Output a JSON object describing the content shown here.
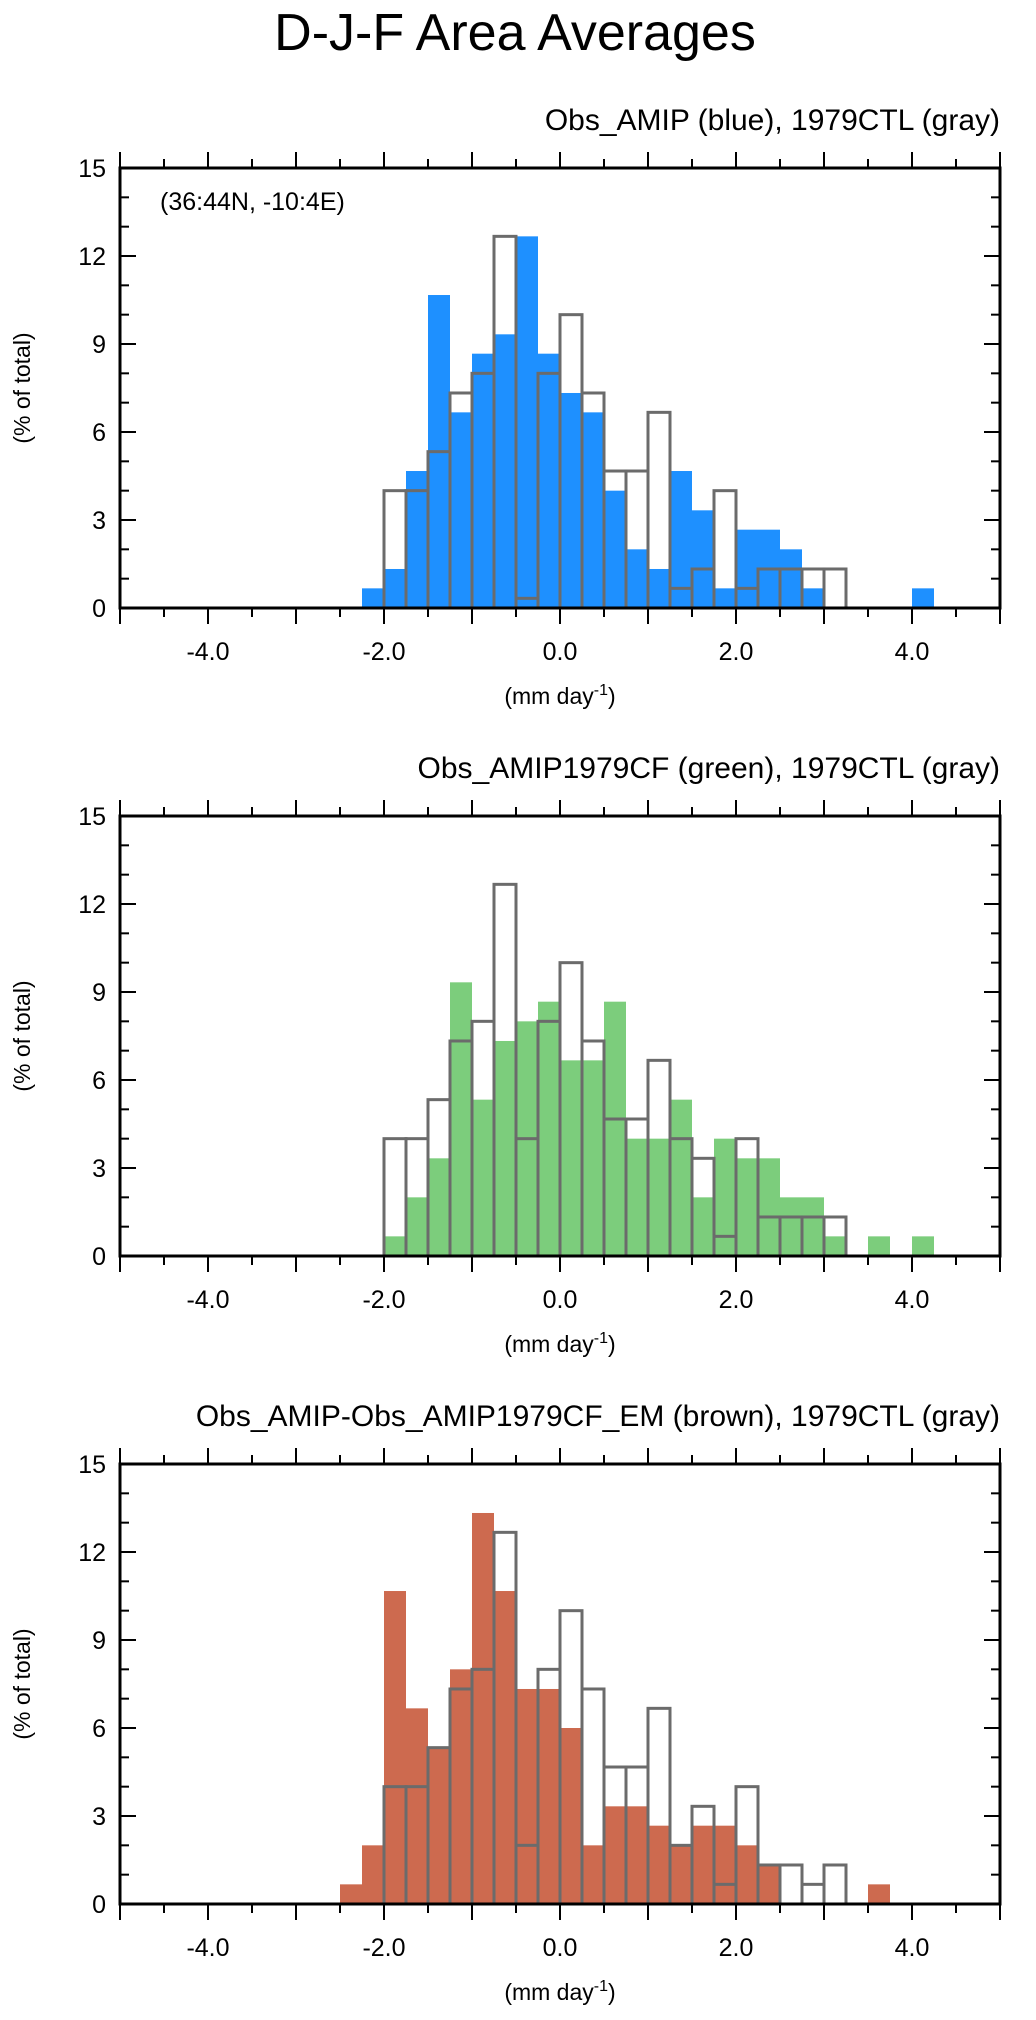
{
  "figure": {
    "title": "D-J-F Area Averages"
  },
  "colors": {
    "blue": "#1e90ff",
    "green": "#7ccd7c",
    "brown": "#cd6a4f",
    "gray": "#6b6b6b",
    "axis": "#000000"
  },
  "chart_data": [
    {
      "type": "bar",
      "title": "Obs_AMIP (blue), 1979CTL (gray)",
      "region": "(36:44N, -10:4E)",
      "xlabel": "(mm day",
      "xlabel_sup": "-1",
      "xlabel_close": ")",
      "ylabel": "(% of total)",
      "xlim": [
        -5,
        5
      ],
      "ylim": [
        0,
        15
      ],
      "xticks": [
        -4,
        -2,
        0,
        2,
        4
      ],
      "xtick_labels": [
        "-4.0",
        "-2.0",
        "0.0",
        "2.0",
        "4.0"
      ],
      "yticks": [
        0,
        3,
        6,
        9,
        12,
        15
      ],
      "ytick_labels": [
        "0",
        "3",
        "6",
        "9",
        "12",
        "15"
      ],
      "bin_width": 0.25,
      "series": [
        {
          "name": "Obs_AMIP",
          "style": "filled",
          "color": "blue",
          "bin_start": [
            -2.25,
            -2.0,
            -1.75,
            -1.5,
            -1.25,
            -1.0,
            -0.75,
            -0.5,
            -0.25,
            0.0,
            0.25,
            0.5,
            0.75,
            1.0,
            1.25,
            1.5,
            1.75,
            2.0,
            2.25,
            2.5,
            2.75,
            4.0
          ],
          "values": [
            0.67,
            1.33,
            4.67,
            10.67,
            6.67,
            8.67,
            9.33,
            12.67,
            8.67,
            7.33,
            6.67,
            4.0,
            2.0,
            1.33,
            4.67,
            3.33,
            0.67,
            2.67,
            2.67,
            2.0,
            0.67,
            0.67
          ]
        },
        {
          "name": "1979CTL",
          "style": "outline",
          "color": "gray",
          "bin_start": [
            -2.0,
            -1.75,
            -1.5,
            -1.25,
            -1.0,
            -0.75,
            -0.5,
            -0.25,
            0.0,
            0.25,
            0.5,
            0.75,
            1.0,
            1.25,
            1.5,
            1.75,
            2.0,
            2.25,
            2.5,
            2.75,
            3.0
          ],
          "values": [
            4.0,
            4.0,
            5.33,
            7.33,
            8.0,
            12.67,
            0.33,
            8.0,
            10.0,
            7.33,
            4.67,
            4.67,
            6.67,
            0.67,
            1.33,
            4.0,
            0.67,
            1.33,
            1.33,
            1.33,
            1.33
          ]
        }
      ]
    },
    {
      "type": "bar",
      "title": "Obs_AMIP1979CF (green), 1979CTL (gray)",
      "region": "",
      "xlabel": "(mm day",
      "xlabel_sup": "-1",
      "xlabel_close": ")",
      "ylabel": "(% of total)",
      "xlim": [
        -5,
        5
      ],
      "ylim": [
        0,
        15
      ],
      "xticks": [
        -4,
        -2,
        0,
        2,
        4
      ],
      "xtick_labels": [
        "-4.0",
        "-2.0",
        "0.0",
        "2.0",
        "4.0"
      ],
      "yticks": [
        0,
        3,
        6,
        9,
        12,
        15
      ],
      "ytick_labels": [
        "0",
        "3",
        "6",
        "9",
        "12",
        "15"
      ],
      "bin_width": 0.25,
      "series": [
        {
          "name": "Obs_AMIP1979CF",
          "style": "filled",
          "color": "green",
          "bin_start": [
            -2.0,
            -1.75,
            -1.5,
            -1.25,
            -1.0,
            -0.75,
            -0.5,
            -0.25,
            0.0,
            0.25,
            0.5,
            0.75,
            1.0,
            1.25,
            1.5,
            1.75,
            2.0,
            2.25,
            2.5,
            2.75,
            3.0,
            3.5,
            4.0
          ],
          "values": [
            0.67,
            2.0,
            3.33,
            9.33,
            5.33,
            7.33,
            8.0,
            8.67,
            6.67,
            6.67,
            8.67,
            4.0,
            4.0,
            5.33,
            2.0,
            4.0,
            3.33,
            3.33,
            2.0,
            2.0,
            0.67,
            0.67,
            0.67
          ]
        },
        {
          "name": "1979CTL",
          "style": "outline",
          "color": "gray",
          "bin_start": [
            -2.0,
            -1.75,
            -1.5,
            -1.25,
            -1.0,
            -0.75,
            -0.5,
            -0.25,
            0.0,
            0.25,
            0.5,
            0.75,
            1.0,
            1.25,
            1.5,
            1.75,
            2.0,
            2.25,
            2.5,
            2.75,
            3.0
          ],
          "values": [
            4.0,
            4.0,
            5.33,
            7.33,
            8.0,
            12.67,
            4.0,
            8.0,
            10.0,
            7.33,
            4.67,
            4.67,
            6.67,
            4.0,
            3.33,
            0.67,
            4.0,
            1.33,
            1.33,
            1.33,
            1.33
          ]
        }
      ]
    },
    {
      "type": "bar",
      "title": "Obs_AMIP-Obs_AMIP1979CF_EM (brown), 1979CTL (gray)",
      "region": "",
      "xlabel": "(mm day",
      "xlabel_sup": "-1",
      "xlabel_close": ")",
      "ylabel": "(% of total)",
      "xlim": [
        -5,
        5
      ],
      "ylim": [
        0,
        15
      ],
      "xticks": [
        -4,
        -2,
        0,
        2,
        4
      ],
      "xtick_labels": [
        "-4.0",
        "-2.0",
        "0.0",
        "2.0",
        "4.0"
      ],
      "yticks": [
        0,
        3,
        6,
        9,
        12,
        15
      ],
      "ytick_labels": [
        "0",
        "3",
        "6",
        "9",
        "12",
        "15"
      ],
      "bin_width": 0.25,
      "series": [
        {
          "name": "Obs_AMIP-Obs_AMIP1979CF_EM",
          "style": "filled",
          "color": "brown",
          "bin_start": [
            -2.5,
            -2.25,
            -2.0,
            -1.75,
            -1.5,
            -1.25,
            -1.0,
            -0.75,
            -0.5,
            -0.25,
            0.0,
            0.25,
            0.5,
            0.75,
            1.0,
            1.25,
            1.5,
            1.75,
            2.0,
            2.25,
            3.5
          ],
          "values": [
            0.67,
            2.0,
            10.67,
            6.67,
            5.33,
            8.0,
            13.33,
            10.67,
            7.33,
            7.33,
            6.0,
            2.0,
            3.33,
            3.33,
            2.67,
            2.0,
            2.67,
            2.67,
            2.0,
            1.33,
            0.67
          ]
        },
        {
          "name": "1979CTL",
          "style": "outline",
          "color": "gray",
          "bin_start": [
            -2.0,
            -1.75,
            -1.5,
            -1.25,
            -1.0,
            -0.75,
            -0.5,
            -0.25,
            0.0,
            0.25,
            0.5,
            0.75,
            1.0,
            1.25,
            1.5,
            1.75,
            2.0,
            2.25,
            2.5,
            2.75,
            3.0
          ],
          "values": [
            4.0,
            4.0,
            5.33,
            7.33,
            8.0,
            12.67,
            2.0,
            8.0,
            10.0,
            7.33,
            4.67,
            4.67,
            6.67,
            2.0,
            3.33,
            0.67,
            4.0,
            1.33,
            1.33,
            0.67,
            1.33
          ]
        }
      ]
    }
  ]
}
